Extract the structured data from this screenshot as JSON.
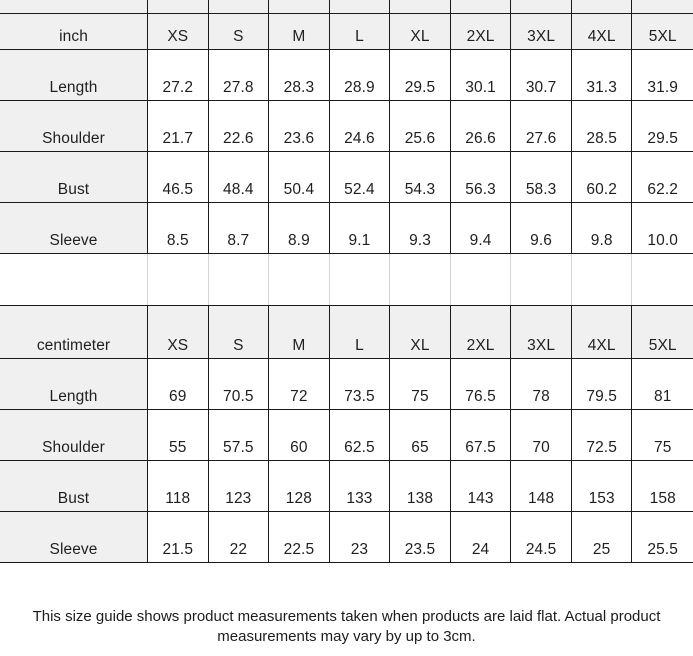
{
  "footer_note": "This size guide shows product measurements taken when products are laid flat. Actual product measurements may vary by up to 3cm.",
  "colors": {
    "grid_line": "#1a1a1a",
    "spacer_grid_line": "#d4d4d4",
    "header_bg": "#f0f0f0",
    "cell_bg": "#ffffff",
    "text": "#1f1f1f"
  },
  "chart_data": [
    {
      "type": "table",
      "unit": "inch",
      "columns": [
        "XS",
        "S",
        "M",
        "L",
        "XL",
        "2XL",
        "3XL",
        "4XL",
        "5XL"
      ],
      "rows": [
        {
          "label": "Length",
          "values": [
            "27.2",
            "27.8",
            "28.3",
            "28.9",
            "29.5",
            "30.1",
            "30.7",
            "31.3",
            "31.9"
          ]
        },
        {
          "label": "Shoulder",
          "values": [
            "21.7",
            "22.6",
            "23.6",
            "24.6",
            "25.6",
            "26.6",
            "27.6",
            "28.5",
            "29.5"
          ]
        },
        {
          "label": "Bust",
          "values": [
            "46.5",
            "48.4",
            "50.4",
            "52.4",
            "54.3",
            "56.3",
            "58.3",
            "60.2",
            "62.2"
          ]
        },
        {
          "label": "Sleeve",
          "values": [
            "8.5",
            "8.7",
            "8.9",
            "9.1",
            "9.3",
            "9.4",
            "9.6",
            "9.8",
            "10.0"
          ]
        }
      ]
    },
    {
      "type": "table",
      "unit": "centimeter",
      "columns": [
        "XS",
        "S",
        "M",
        "L",
        "XL",
        "2XL",
        "3XL",
        "4XL",
        "5XL"
      ],
      "rows": [
        {
          "label": "Length",
          "values": [
            "69",
            "70.5",
            "72",
            "73.5",
            "75",
            "76.5",
            "78",
            "79.5",
            "81"
          ]
        },
        {
          "label": "Shoulder",
          "values": [
            "55",
            "57.5",
            "60",
            "62.5",
            "65",
            "67.5",
            "70",
            "72.5",
            "75"
          ]
        },
        {
          "label": "Bust",
          "values": [
            "118",
            "123",
            "128",
            "133",
            "138",
            "143",
            "148",
            "153",
            "158"
          ]
        },
        {
          "label": "Sleeve",
          "values": [
            "21.5",
            "22",
            "22.5",
            "23",
            "23.5",
            "24",
            "24.5",
            "25",
            "25.5"
          ]
        }
      ]
    }
  ]
}
